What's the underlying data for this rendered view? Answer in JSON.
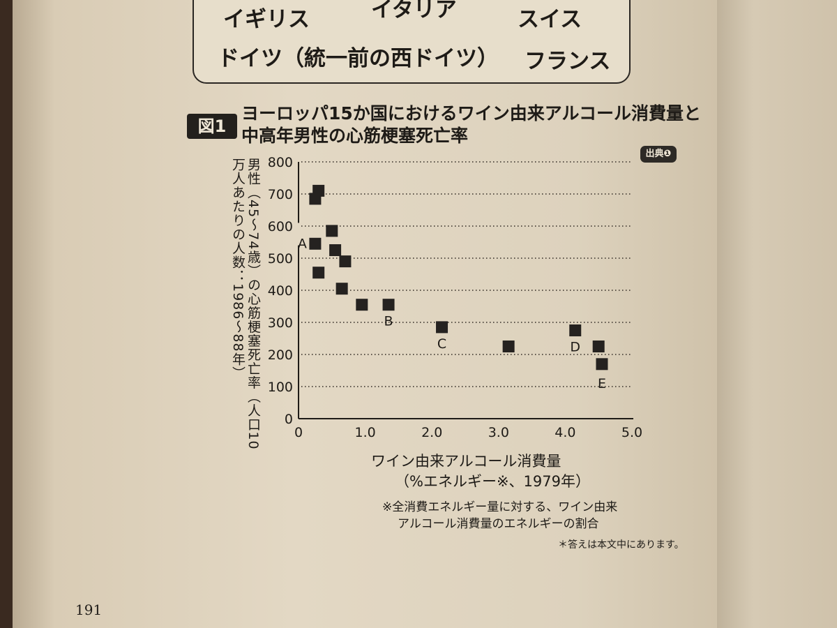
{
  "quiz": {
    "options": [
      "イギリス",
      "イタリア",
      "スイス",
      "ドイツ（統一前の西ドイツ）",
      "フランス"
    ]
  },
  "figure": {
    "label": "図1",
    "title_line1": "ヨーロッパ15か国におけるワイン由来アルコール消費量と",
    "title_line2": "中高年男性の心筋梗塞死亡率",
    "source_badge": "出典❶"
  },
  "chart_data": {
    "type": "scatter",
    "title": "ヨーロッパ15か国におけるワイン由来アルコール消費量と中高年男性の心筋梗塞死亡率",
    "xlabel": "ワイン由来アルコール消費量",
    "xlabel_sub": "（%エネルギー※、1979年）",
    "ylabel": "男性（45〜74歳）の心筋梗塞死亡率（人口10万人あたりの人数：1986〜88年）",
    "xlim": [
      0,
      5.0
    ],
    "ylim": [
      0,
      800
    ],
    "x_ticks": [
      "0",
      "1.0",
      "2.0",
      "3.0",
      "4.0",
      "5.0"
    ],
    "y_ticks": [
      "0",
      "100",
      "200",
      "300",
      "400",
      "500",
      "600",
      "700",
      "800"
    ],
    "y_axis_break": [
      540,
      610
    ],
    "grid": "horizontal-dotted",
    "points": [
      {
        "x": 0.3,
        "y": 710,
        "label": ""
      },
      {
        "x": 0.25,
        "y": 685,
        "label": ""
      },
      {
        "x": 0.5,
        "y": 585,
        "label": ""
      },
      {
        "x": 0.25,
        "y": 545,
        "label": "A"
      },
      {
        "x": 0.55,
        "y": 525,
        "label": ""
      },
      {
        "x": 0.7,
        "y": 490,
        "label": ""
      },
      {
        "x": 0.3,
        "y": 455,
        "label": ""
      },
      {
        "x": 0.65,
        "y": 405,
        "label": ""
      },
      {
        "x": 0.95,
        "y": 355,
        "label": ""
      },
      {
        "x": 1.35,
        "y": 355,
        "label": "B"
      },
      {
        "x": 2.15,
        "y": 285,
        "label": "C"
      },
      {
        "x": 3.15,
        "y": 225,
        "label": ""
      },
      {
        "x": 4.15,
        "y": 275,
        "label": "D"
      },
      {
        "x": 4.5,
        "y": 225,
        "label": ""
      },
      {
        "x": 4.55,
        "y": 170,
        "label": "E"
      }
    ]
  },
  "notes": {
    "energy_note_line1": "※全消費エネルギー量に対する、ワイン由来",
    "energy_note_line2": "アルコール消費量のエネルギーの割合",
    "answer_note": "＊答えは本文中にあります。"
  },
  "page_number": "191"
}
